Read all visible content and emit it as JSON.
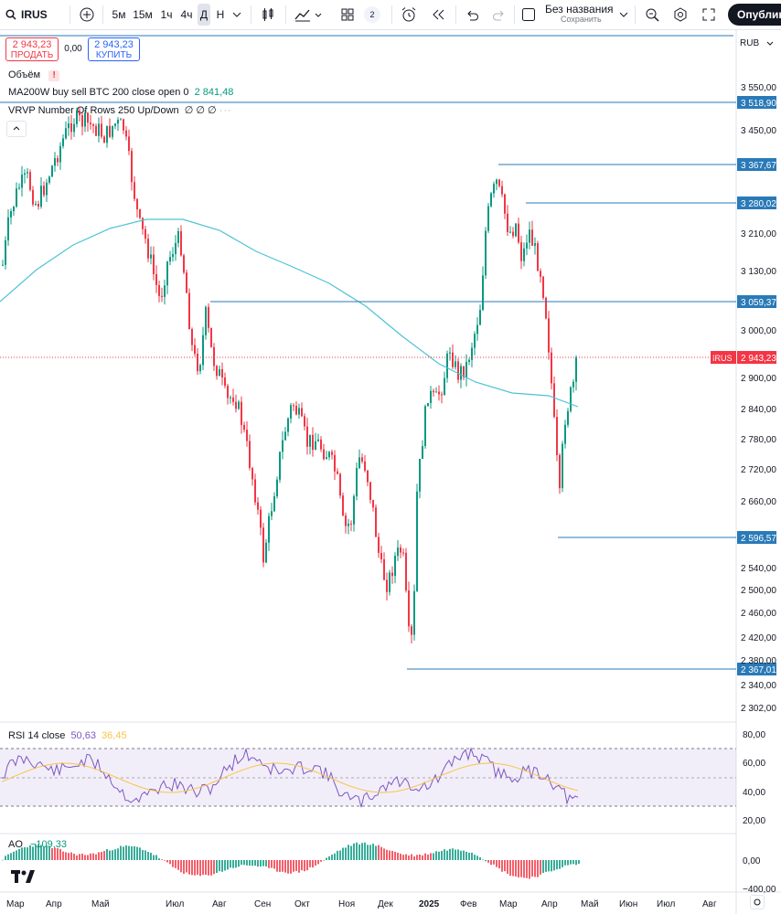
{
  "symbol": "IRUS",
  "toolbar": {
    "intervals": [
      "5м",
      "15м",
      "1ч",
      "4ч",
      "Д",
      "Н"
    ],
    "active_interval": "Д",
    "layout_count": "2",
    "layout_title": "Без названия",
    "layout_subtitle": "Сохранить",
    "publish_label": "Опублико"
  },
  "trade": {
    "sell_price": "2 943,23",
    "sell_label": "ПРОДАТЬ",
    "spread": "0,00",
    "buy_price": "2 943,23",
    "buy_label": "КУПИТЬ"
  },
  "currency": "RUB",
  "indicators": {
    "volume": "Объём",
    "ma_label": "MA200W buy sell BTC 200 close open 0",
    "ma_value": "2 841,48",
    "vrvp_label": "VRVP Number Of Rows 250 Up/Down",
    "vrvp_values": "∅ ∅ ∅"
  },
  "price_axis": [
    "3 550,00",
    "3 450,00",
    "3 210,00",
    "3 130,00",
    "3 000,00",
    "2 900,00",
    "2 840,00",
    "2 780,00",
    "2 720,00",
    "2 660,00",
    "2 540,00",
    "2 500,00",
    "2 460,00",
    "2 420,00",
    "2 380,00",
    "2 340,00",
    "2 302,00"
  ],
  "levels": [
    "3 518,90",
    "3 367,67",
    "3 280,02",
    "3 059,37",
    "2 596,57",
    "2 367,01"
  ],
  "last_price": {
    "symbol": "IRUS",
    "value": "2 943,23"
  },
  "rsi": {
    "label": "RSI 14 close",
    "value1": "50,63",
    "value2": "36,45",
    "axis": [
      "80,00",
      "60,00",
      "40,00",
      "20,00"
    ]
  },
  "ao": {
    "label": "AO",
    "value": "−109,33",
    "axis": [
      "0,00",
      "−400,00"
    ]
  },
  "time_axis": [
    "Мар",
    "Апр",
    "Май",
    "Июл",
    "Авг",
    "Сен",
    "Окт",
    "Ноя",
    "Дек",
    "2025",
    "Фев",
    "Мар",
    "Апр",
    "Май",
    "Июн",
    "Июл",
    "Авг"
  ],
  "colors": {
    "up": "#089981",
    "down": "#f23645",
    "ma": "#4dc3d6",
    "level": "#2a7ab8",
    "rsi": "#7e57c2",
    "rsi_ma": "#f7c548",
    "accent": "#2962ff"
  }
}
